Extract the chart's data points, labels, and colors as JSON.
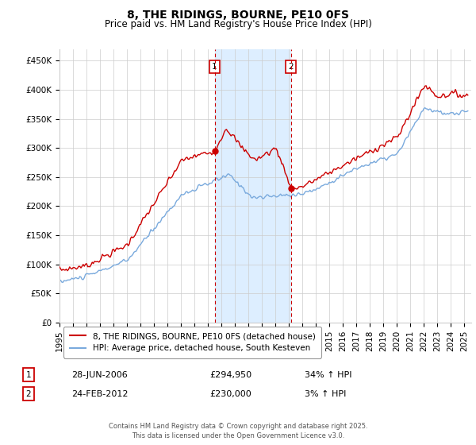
{
  "title": "8, THE RIDINGS, BOURNE, PE10 0FS",
  "subtitle": "Price paid vs. HM Land Registry's House Price Index (HPI)",
  "ylabel_ticks": [
    "£0",
    "£50K",
    "£100K",
    "£150K",
    "£200K",
    "£250K",
    "£300K",
    "£350K",
    "£400K",
    "£450K"
  ],
  "ytick_values": [
    0,
    50000,
    100000,
    150000,
    200000,
    250000,
    300000,
    350000,
    400000,
    450000
  ],
  "ylim": [
    0,
    470000
  ],
  "xlim_start": 1995.0,
  "xlim_end": 2025.5,
  "sale1_date": 2006.49,
  "sale1_price": 294950,
  "sale1_label": "1",
  "sale2_date": 2012.15,
  "sale2_price": 230000,
  "sale2_label": "2",
  "legend_line1": "8, THE RIDINGS, BOURNE, PE10 0FS (detached house)",
  "legend_line2": "HPI: Average price, detached house, South Kesteven",
  "table_row1": [
    "1",
    "28-JUN-2006",
    "£294,950",
    "34% ↑ HPI"
  ],
  "table_row2": [
    "2",
    "24-FEB-2012",
    "£230,000",
    "3% ↑ HPI"
  ],
  "footer": "Contains HM Land Registry data © Crown copyright and database right 2025.\nThis data is licensed under the Open Government Licence v3.0.",
  "red_color": "#cc0000",
  "blue_color": "#7aaadd",
  "shaded_color": "#ddeeff",
  "vline_color": "#cc0000",
  "background_color": "#ffffff",
  "grid_color": "#cccccc",
  "title_fontsize": 10,
  "subtitle_fontsize": 8.5,
  "tick_fontsize": 7.5
}
